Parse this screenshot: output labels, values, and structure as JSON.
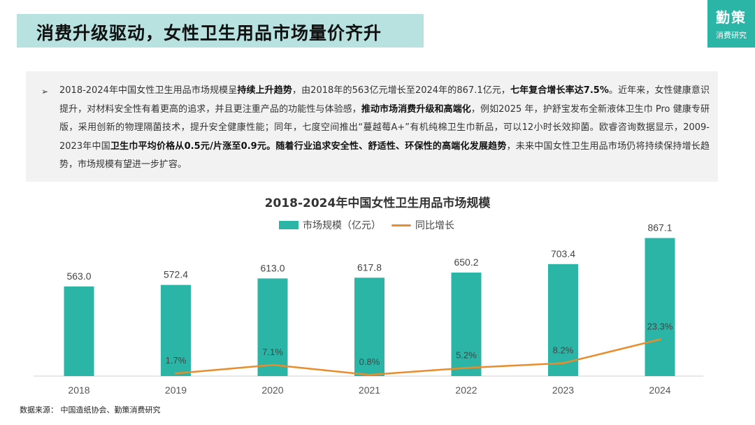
{
  "header": {
    "title": "消费升级驱动，女性卫生用品市场量价齐升"
  },
  "brand": {
    "name": "勤策",
    "subtitle": "消费研究"
  },
  "description": {
    "bullet": "➢",
    "segments": [
      {
        "text": "2018-2024年中国女性卫生用品市场规模呈",
        "bold": false
      },
      {
        "text": "持续上升趋势",
        "bold": true
      },
      {
        "text": "，由2018年的563亿元增长至2024年的867.1亿元，",
        "bold": false
      },
      {
        "text": "七年复合增长率达7.5%",
        "bold": true
      },
      {
        "text": "。近年来，女性健康意识提升，对材料安全性有着更高的追求，并且更注重产品的功能性与体验感，",
        "bold": false
      },
      {
        "text": "推动市场消费升级和高端化",
        "bold": true
      },
      {
        "text": "，例如2025 年，护舒宝发布全新液体卫生巾 Pro 健康专研版，采用创新的物理隔菌技术，提升安全健康性能；同年，七度空间推出“蔓越莓A+”有机纯棉卫生巾新品，可以12小时长效抑菌。欧睿咨询数据显示，2009-2023年中国",
        "bold": false
      },
      {
        "text": "卫生巾平均价格从0.5元/片涨至0.9元。随着行业追求安全性、舒适性、环保性的高端化发展趋势",
        "bold": true
      },
      {
        "text": "，未来中国女性卫生用品市场仍将持续保持增长趋势，市场规模有望进一步扩容。",
        "bold": false
      }
    ]
  },
  "chart_data": {
    "type": "bar",
    "title": "2018-2024年中国女性卫生用品市场规模",
    "categories": [
      "2018",
      "2019",
      "2020",
      "2021",
      "2022",
      "2023",
      "2024"
    ],
    "series": [
      {
        "name": "市场规模（亿元）",
        "type": "bar",
        "color": "#2bb5a7",
        "values": [
          563.0,
          572.4,
          613.0,
          617.8,
          650.2,
          703.4,
          867.1
        ],
        "labels": [
          "563.0",
          "572.4",
          "613.0",
          "617.8",
          "650.2",
          "703.4",
          "867.1"
        ]
      },
      {
        "name": "同比增长",
        "type": "line",
        "color": "#e88c2c",
        "values": [
          null,
          1.7,
          7.1,
          0.8,
          5.2,
          8.2,
          23.3
        ],
        "labels": [
          "",
          "1.7%",
          "7.1%",
          "0.8%",
          "5.2%",
          "8.2%",
          "23.3%"
        ]
      }
    ],
    "bar_ylim": [
      0,
      900
    ],
    "line_ylim": [
      0,
      60
    ],
    "legend_position": "top-center",
    "grid": false
  },
  "footer": {
    "source": "数据来源：  中国造纸协会、勤策消费研究"
  }
}
